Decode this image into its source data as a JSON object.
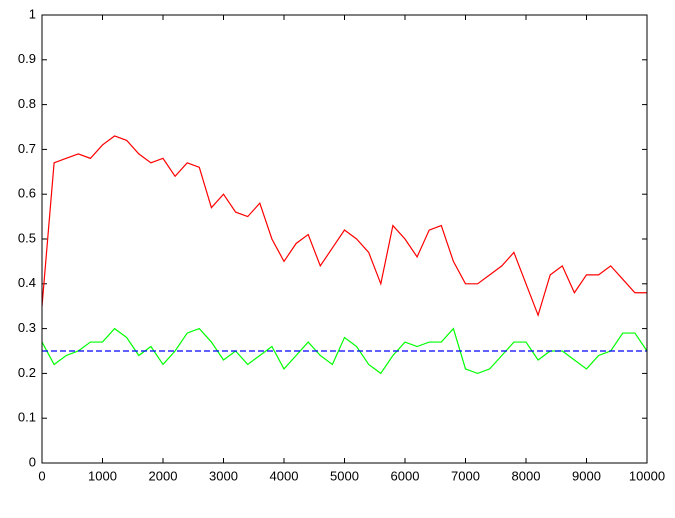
{
  "chart_data": {
    "type": "line",
    "xlim": [
      0,
      10000
    ],
    "xticks": [
      0,
      1000,
      2000,
      3000,
      4000,
      5000,
      6000,
      7000,
      8000,
      9000,
      10000
    ],
    "ylim": [
      0,
      1
    ],
    "yticks": [
      0,
      0.1,
      0.2,
      0.3,
      0.4,
      0.5,
      0.6,
      0.7,
      0.8,
      0.9,
      1
    ],
    "series": [
      {
        "color": "#ff0000",
        "x": [
          0,
          200,
          400,
          600,
          800,
          1000,
          1200,
          1400,
          1600,
          1800,
          2000,
          2200,
          2400,
          2600,
          2800,
          3000,
          3200,
          3400,
          3600,
          3800,
          4000,
          4200,
          4400,
          4600,
          4800,
          5000,
          5200,
          5400,
          5600,
          5800,
          6000,
          6200,
          6400,
          6600,
          6800,
          7000,
          7200,
          7400,
          7600,
          7800,
          8000,
          8200,
          8400,
          8600,
          8800,
          9000,
          9200,
          9400,
          9600,
          9800,
          10000
        ],
        "values": [
          0.35,
          0.67,
          0.68,
          0.69,
          0.68,
          0.71,
          0.73,
          0.72,
          0.69,
          0.67,
          0.68,
          0.64,
          0.67,
          0.66,
          0.57,
          0.6,
          0.56,
          0.55,
          0.58,
          0.5,
          0.45,
          0.49,
          0.51,
          0.44,
          0.48,
          0.52,
          0.5,
          0.47,
          0.4,
          0.53,
          0.5,
          0.46,
          0.52,
          0.53,
          0.45,
          0.4,
          0.4,
          0.42,
          0.44,
          0.47,
          0.4,
          0.33,
          0.42,
          0.44,
          0.38,
          0.42,
          0.42,
          0.44,
          0.41,
          0.38,
          0.38
        ]
      },
      {
        "color": "#00ff00",
        "x": [
          0,
          200,
          400,
          600,
          800,
          1000,
          1200,
          1400,
          1600,
          1800,
          2000,
          2200,
          2400,
          2600,
          2800,
          3000,
          3200,
          3400,
          3600,
          3800,
          4000,
          4200,
          4400,
          4600,
          4800,
          5000,
          5200,
          5400,
          5600,
          5800,
          6000,
          6200,
          6400,
          6600,
          6800,
          7000,
          7200,
          7400,
          7600,
          7800,
          8000,
          8200,
          8400,
          8600,
          8800,
          9000,
          9200,
          9400,
          9600,
          9800,
          10000
        ],
        "values": [
          0.27,
          0.22,
          0.24,
          0.25,
          0.27,
          0.27,
          0.3,
          0.28,
          0.24,
          0.26,
          0.22,
          0.25,
          0.29,
          0.3,
          0.27,
          0.23,
          0.25,
          0.22,
          0.24,
          0.26,
          0.21,
          0.24,
          0.27,
          0.24,
          0.22,
          0.28,
          0.26,
          0.22,
          0.2,
          0.24,
          0.27,
          0.26,
          0.27,
          0.27,
          0.3,
          0.21,
          0.2,
          0.21,
          0.24,
          0.27,
          0.27,
          0.23,
          0.25,
          0.25,
          0.23,
          0.21,
          0.24,
          0.25,
          0.29,
          0.29,
          0.25
        ]
      },
      {
        "color": "#0000ff",
        "dashed": true,
        "x": [
          0,
          10000
        ],
        "values": [
          0.25,
          0.25
        ]
      }
    ]
  }
}
